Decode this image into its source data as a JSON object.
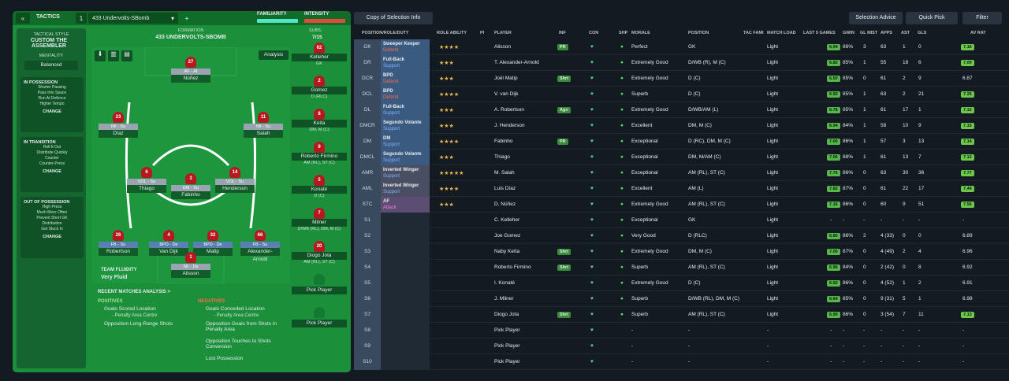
{
  "tactics": {
    "label": "TACTICS",
    "num": "1",
    "name": "433 Undervolts-SBomb",
    "familiarity": "FAMILIARITY",
    "intensity": "INTENSITY",
    "formation_label": "FORMATION",
    "formation": "433 UNDERVOLTS-SBOMB",
    "subs_label": "SUBS:",
    "subs": "7/15",
    "analysis": "Analysis"
  },
  "style": {
    "label": "TACTICAL STYLE",
    "value": "CUSTOM THE ASSEMBLER",
    "mentality_label": "MENTALITY",
    "mentality": "Balanced",
    "in_possession": "IN POSSESSION",
    "inp": [
      "Shorter Passing",
      "Pass Into Space",
      "Run At Defence",
      "Higher Tempo"
    ],
    "in_transition": "IN TRANSITION",
    "int": [
      "Roll It Out",
      "Distribute Quickly",
      "Counter",
      "Counter-Press"
    ],
    "out_possession": "OUT OF POSSESSION",
    "oop": [
      "High Press",
      "Much More Often",
      "Prevent Short GK",
      "Distribution",
      "Get Stuck In"
    ],
    "change": "CHANGE"
  },
  "players": [
    {
      "n": "27",
      "role": "AF - At",
      "name": "Núñez",
      "d": false
    },
    {
      "n": "23",
      "role": "IW - Su",
      "name": "Díaz",
      "d": false
    },
    {
      "n": "11",
      "role": "IW - Su",
      "name": "Salah",
      "d": false
    },
    {
      "n": "6",
      "role": "VOL - Su",
      "name": "Thiago",
      "d": false
    },
    {
      "n": "3",
      "role": "DM - Su",
      "name": "Fabinho",
      "d": false
    },
    {
      "n": "14",
      "role": "VOL - Su",
      "name": "Henderson",
      "d": false
    },
    {
      "n": "26",
      "role": "FB - Su",
      "name": "Robertson",
      "d": true
    },
    {
      "n": "4",
      "role": "BPD - De",
      "name": "Van Dijk",
      "d": true
    },
    {
      "n": "32",
      "role": "BPD - De",
      "name": "Matip",
      "d": true
    },
    {
      "n": "66",
      "role": "FB - Su",
      "name": "Alexander-Arnold",
      "d": true
    },
    {
      "n": "1",
      "role": "SK - De",
      "name": "Alisson",
      "d": false
    }
  ],
  "subs": [
    {
      "n": "62",
      "name": "Kelleher",
      "pos": "GK"
    },
    {
      "n": "2",
      "name": "Gomez",
      "pos": "D (RLC)"
    },
    {
      "n": "8",
      "name": "Keita",
      "pos": "DM, M (C)"
    },
    {
      "n": "9",
      "name": "Roberto Firmino",
      "pos": "AM (RL), ST (C)"
    },
    {
      "n": "5",
      "name": "Konaté",
      "pos": "D (C)"
    },
    {
      "n": "7",
      "name": "Milner",
      "pos": "D/WB (RL), DM, M (C)"
    },
    {
      "n": "20",
      "name": "Diogo Jota",
      "pos": "AM (RL), ST (C)"
    },
    {
      "n": "",
      "name": "Pick Player",
      "pos": ""
    },
    {
      "n": "",
      "name": "Pick Player",
      "pos": ""
    }
  ],
  "fluidity": {
    "label": "TEAM FLUIDITY",
    "value": "Very Fluid"
  },
  "recent": {
    "title": "RECENT MATCHES ANALYSIS >",
    "pos_label": "POSITIVES",
    "neg_label": "NEGATIVES",
    "pos": [
      "Goals Scored Location",
      "- Penalty Area Centre",
      "Opposition Long-Range Shots"
    ],
    "neg": [
      "Goals Conceded Location",
      "- Penalty Area Centre",
      "Opposition Goals from Shots in Penalty Area",
      "Opposition Touches to Shots Conversion",
      "Lost Possession"
    ]
  },
  "toolbar": {
    "copy": "Copy of Selection Info",
    "advice": "Selection Advice",
    "quick": "Quick Pick",
    "filter": "Filter"
  },
  "columns": [
    "POSITION/ROLE/DUTY",
    "ROLE ABILITY",
    "PI",
    "PLAYER",
    "INF",
    "CON",
    "SHP",
    "MORALE",
    "POSITION",
    "TAC FAMI",
    "MATCH LOAD",
    "LAST 5 GAMES",
    "GWIN",
    "GL MIST",
    "APPS",
    "AST",
    "GLS",
    "AV RAT"
  ],
  "rows": [
    {
      "pos": "GK",
      "role": "Sweeper Keeper",
      "duty": "Defend",
      "stars": "★★★★",
      "player": "Alisson",
      "inf": "PR",
      "morale": "Perfect",
      "position": "GK",
      "load": "Light",
      "avg": "6.94",
      "gwin": "86%",
      "gl": "3",
      "apps": "63",
      "ast": "1",
      "gls": "0",
      "rat": "7.16"
    },
    {
      "pos": "DR",
      "role": "Full-Back",
      "duty": "Support",
      "stars": "★★★",
      "player": "T. Alexander-Arnold",
      "inf": "",
      "morale": "Extremely Good",
      "position": "D/WB (R), M (C)",
      "load": "Light",
      "avg": "6.82",
      "gwin": "85%",
      "gl": "1",
      "apps": "55",
      "ast": "18",
      "gls": "6",
      "rat": "7.00"
    },
    {
      "pos": "DCR",
      "role": "BPD",
      "duty": "Defend",
      "stars": "★★★",
      "player": "Joël Matip",
      "inf": "Shrt",
      "morale": "Extremely Good",
      "position": "D (C)",
      "load": "Light",
      "avg": "6.50",
      "gwin": "85%",
      "gl": "0",
      "apps": "61",
      "ast": "2",
      "gls": "9",
      "rat": "6.87"
    },
    {
      "pos": "DCL",
      "role": "BPD",
      "duty": "Defend",
      "stars": "★★★★",
      "player": "V. van Dijk",
      "inf": "",
      "morale": "Superb",
      "position": "D (C)",
      "load": "Light",
      "avg": "6.92",
      "gwin": "85%",
      "gl": "1",
      "apps": "63",
      "ast": "2",
      "gls": "21",
      "rat": "7.25"
    },
    {
      "pos": "DL",
      "role": "Full-Back",
      "duty": "Support",
      "stars": "★★★",
      "player": "A. Robertson",
      "inf": "Agn",
      "morale": "Extremely Good",
      "position": "D/WB/AM (L)",
      "load": "Light",
      "avg": "6.78",
      "gwin": "85%",
      "gl": "1",
      "apps": "61",
      "ast": "17",
      "gls": "1",
      "rat": "7.12"
    },
    {
      "pos": "DMCR",
      "role": "Segundo Volante",
      "duty": "Support",
      "stars": "★★★",
      "player": "J. Henderson",
      "inf": "",
      "morale": "Excellent",
      "position": "DM, M (C)",
      "load": "Light",
      "avg": "6.94",
      "gwin": "84%",
      "gl": "1",
      "apps": "58",
      "ast": "10",
      "gls": "9",
      "rat": "7.15"
    },
    {
      "pos": "DM",
      "role": "DM",
      "duty": "Support",
      "stars": "★★★★",
      "player": "Fabinho",
      "inf": "PR",
      "morale": "Exceptional",
      "position": "D (RC), DM, M (C)",
      "load": "Light",
      "avg": "7.00",
      "gwin": "86%",
      "gl": "1",
      "apps": "57",
      "ast": "3",
      "gls": "13",
      "rat": "7.14"
    },
    {
      "pos": "DMCL",
      "role": "Segundo Volante",
      "duty": "Support",
      "stars": "★★★",
      "player": "Thiago",
      "inf": "",
      "morale": "Exceptional",
      "position": "DM, M/AM (C)",
      "load": "Light",
      "avg": "7.06",
      "gwin": "88%",
      "gl": "1",
      "apps": "61",
      "ast": "13",
      "gls": "7",
      "rat": "7.12"
    },
    {
      "pos": "AMR",
      "role": "Inverted Winger",
      "duty": "Support",
      "stars": "★★★★★",
      "player": "M. Salah",
      "inf": "",
      "morale": "Exceptional",
      "position": "AM (RL), ST (C)",
      "load": "Light",
      "avg": "7.76",
      "gwin": "86%",
      "gl": "0",
      "apps": "63",
      "ast": "30",
      "gls": "36",
      "rat": "7.77"
    },
    {
      "pos": "AML",
      "role": "Inverted Winger",
      "duty": "Support",
      "stars": "★★★★",
      "player": "Luis Díaz",
      "inf": "",
      "morale": "Excellent",
      "position": "AM (L)",
      "load": "Light",
      "avg": "7.82",
      "gwin": "87%",
      "gl": "0",
      "apps": "61",
      "ast": "22",
      "gls": "17",
      "rat": "7.44"
    },
    {
      "pos": "STC",
      "role": "AF",
      "duty": "Attack",
      "stars": "★★★",
      "player": "D. Núñez",
      "inf": "",
      "morale": "Extremely Good",
      "position": "AM (RL), ST (C)",
      "load": "Light",
      "avg": "7.16",
      "gwin": "86%",
      "gl": "0",
      "apps": "60",
      "ast": "9",
      "gls": "51",
      "rat": "7.56"
    },
    {
      "pos": "S1",
      "role": "",
      "duty": "",
      "stars": "",
      "player": "C. Kelleher",
      "inf": "",
      "morale": "Exceptional",
      "position": "GK",
      "load": "Light",
      "avg": "-",
      "gwin": "-",
      "gl": "-",
      "apps": "-",
      "ast": "-",
      "gls": "-",
      "rat": "-"
    },
    {
      "pos": "S2",
      "role": "",
      "duty": "",
      "stars": "",
      "player": "Joe Gomez",
      "inf": "",
      "morale": "Very Good",
      "position": "D (RLC)",
      "load": "Light",
      "avg": "6.80",
      "gwin": "86%",
      "gl": "2",
      "apps": "4 (33)",
      "ast": "0",
      "gls": "0",
      "rat": "6.89"
    },
    {
      "pos": "S3",
      "role": "",
      "duty": "",
      "stars": "",
      "player": "Naby Keïta",
      "inf": "Shrt",
      "morale": "Extremely Good",
      "position": "DM, M (C)",
      "load": "Light",
      "avg": "7.00",
      "gwin": "87%",
      "gl": "0",
      "apps": "4 (49)",
      "ast": "2",
      "gls": "4",
      "rat": "6.96"
    },
    {
      "pos": "S4",
      "role": "",
      "duty": "",
      "stars": "",
      "player": "Roberto Firmino",
      "inf": "Shrt",
      "morale": "Superb",
      "position": "AM (RL), ST (C)",
      "load": "Light",
      "avg": "6.96",
      "gwin": "84%",
      "gl": "0",
      "apps": "2 (42)",
      "ast": "0",
      "gls": "8",
      "rat": "6.92"
    },
    {
      "pos": "S5",
      "role": "",
      "duty": "",
      "stars": "",
      "player": "I. Konaté",
      "inf": "",
      "morale": "Extremely Good",
      "position": "D (C)",
      "load": "Light",
      "avg": "6.92",
      "gwin": "86%",
      "gl": "0",
      "apps": "4 (52)",
      "ast": "1",
      "gls": "2",
      "rat": "6.91"
    },
    {
      "pos": "S6",
      "role": "",
      "duty": "",
      "stars": "",
      "player": "J. Milner",
      "inf": "",
      "morale": "Superb",
      "position": "D/WB (RL), DM, M (C)",
      "load": "Light",
      "avg": "6.64",
      "gwin": "85%",
      "gl": "0",
      "apps": "9 (31)",
      "ast": "5",
      "gls": "1",
      "rat": "6.98"
    },
    {
      "pos": "S7",
      "role": "",
      "duty": "",
      "stars": "",
      "player": "Diogo Jota",
      "inf": "Shrt",
      "morale": "Superb",
      "position": "AM (RL), ST (C)",
      "load": "Light",
      "avg": "6.90",
      "gwin": "86%",
      "gl": "0",
      "apps": "3 (54)",
      "ast": "7",
      "gls": "11",
      "rat": "7.13"
    },
    {
      "pos": "S8",
      "role": "",
      "duty": "",
      "stars": "",
      "player": "Pick Player",
      "inf": "",
      "morale": "-",
      "position": "-",
      "load": "-",
      "avg": "-",
      "gwin": "-",
      "gl": "-",
      "apps": "-",
      "ast": "-",
      "gls": "-",
      "rat": "-"
    },
    {
      "pos": "S9",
      "role": "",
      "duty": "",
      "stars": "",
      "player": "Pick Player",
      "inf": "",
      "morale": "-",
      "position": "-",
      "load": "-",
      "avg": "-",
      "gwin": "-",
      "gl": "-",
      "apps": "-",
      "ast": "-",
      "gls": "-",
      "rat": "-"
    },
    {
      "pos": "S10",
      "role": "",
      "duty": "",
      "stars": "",
      "player": "Pick Player",
      "inf": "",
      "morale": "-",
      "position": "-",
      "load": "-",
      "avg": "-",
      "gwin": "-",
      "gl": "-",
      "apps": "-",
      "ast": "-",
      "gls": "-",
      "rat": "-"
    }
  ],
  "colors": {
    "green": "#1c8f3a",
    "accent": "#56e06a",
    "defend": "#ff6b4e",
    "support": "#7fb0ff",
    "attack": "#ff7ae0"
  }
}
